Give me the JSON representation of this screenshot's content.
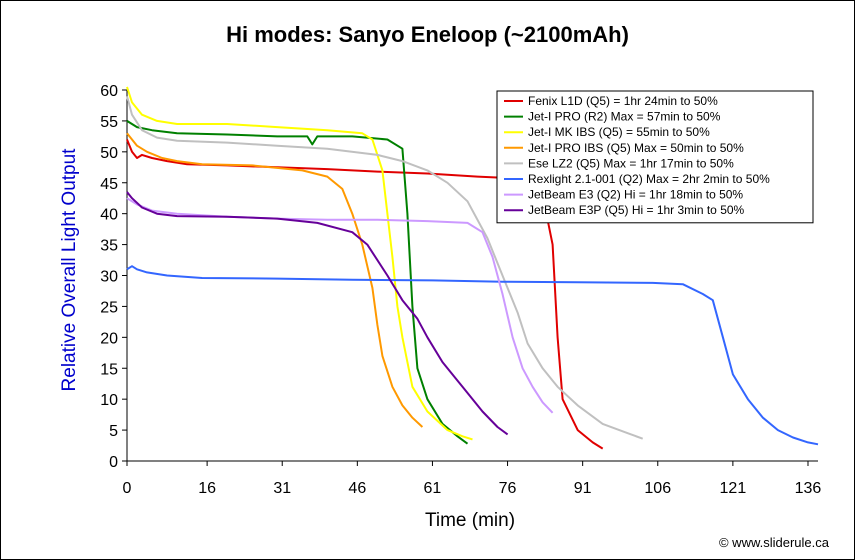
{
  "chart_data": {
    "type": "line",
    "title": "Hi modes: Sanyo Eneloop (~2100mAh)",
    "xlabel": "Time (min)",
    "ylabel": "Relative Overall Light Output",
    "xlim": [
      0,
      138
    ],
    "ylim": [
      0,
      60
    ],
    "x_ticks": [
      "0",
      "16",
      "31",
      "46",
      "61",
      "76",
      "91",
      "106",
      "121",
      "136"
    ],
    "y_ticks": [
      "0",
      "5",
      "10",
      "15",
      "20",
      "25",
      "30",
      "35",
      "40",
      "45",
      "50",
      "55",
      "60"
    ],
    "grid": false,
    "legend_position": "top-right",
    "series": [
      {
        "name": "Fenix L1D (Q5) = 1hr 24min to 50%",
        "color": "#e00000",
        "points": [
          [
            0,
            52
          ],
          [
            1,
            50
          ],
          [
            2,
            49
          ],
          [
            3,
            49.5
          ],
          [
            5,
            49
          ],
          [
            8,
            48.5
          ],
          [
            12,
            48
          ],
          [
            20,
            47.8
          ],
          [
            30,
            47.5
          ],
          [
            40,
            47.2
          ],
          [
            50,
            46.8
          ],
          [
            60,
            46.5
          ],
          [
            70,
            46
          ],
          [
            75,
            45.8
          ],
          [
            80,
            45.5
          ],
          [
            83,
            43
          ],
          [
            85,
            35
          ],
          [
            86,
            20
          ],
          [
            87,
            10
          ],
          [
            90,
            5
          ],
          [
            93,
            3
          ],
          [
            95,
            2
          ]
        ]
      },
      {
        "name": "Jet-I PRO (R2) Max = 57min to 50%",
        "color": "#008000",
        "points": [
          [
            0,
            55
          ],
          [
            2,
            54
          ],
          [
            5,
            53.5
          ],
          [
            10,
            53
          ],
          [
            20,
            52.8
          ],
          [
            30,
            52.5
          ],
          [
            36,
            52.5
          ],
          [
            37,
            51.2
          ],
          [
            38,
            52.5
          ],
          [
            45,
            52.5
          ],
          [
            52,
            52
          ],
          [
            55,
            50.5
          ],
          [
            56,
            40
          ],
          [
            57,
            25
          ],
          [
            58,
            15
          ],
          [
            60,
            10
          ],
          [
            63,
            6
          ],
          [
            66,
            4
          ],
          [
            68,
            2.8
          ]
        ]
      },
      {
        "name": "Jet-I MK IBS (Q5) =  55min to 50%",
        "color": "#ffff00",
        "points": [
          [
            0,
            60.5
          ],
          [
            1,
            58
          ],
          [
            3,
            56
          ],
          [
            6,
            55
          ],
          [
            10,
            54.5
          ],
          [
            20,
            54.5
          ],
          [
            30,
            54
          ],
          [
            40,
            53.5
          ],
          [
            47,
            53
          ],
          [
            49,
            52
          ],
          [
            51,
            47
          ],
          [
            52,
            40
          ],
          [
            53,
            33
          ],
          [
            54,
            25
          ],
          [
            55,
            20
          ],
          [
            57,
            12
          ],
          [
            60,
            8
          ],
          [
            64,
            5
          ],
          [
            67,
            4
          ],
          [
            69,
            3.5
          ]
        ]
      },
      {
        "name": "Jet-I PRO IBS (Q5) Max = 50min to 50%",
        "color": "#ff9900",
        "points": [
          [
            0,
            53
          ],
          [
            2,
            51
          ],
          [
            4,
            50
          ],
          [
            7,
            49
          ],
          [
            10,
            48.5
          ],
          [
            15,
            48
          ],
          [
            25,
            47.8
          ],
          [
            35,
            47
          ],
          [
            40,
            46
          ],
          [
            43,
            44
          ],
          [
            45,
            40
          ],
          [
            47,
            35
          ],
          [
            49,
            28
          ],
          [
            50,
            22
          ],
          [
            51,
            17
          ],
          [
            53,
            12
          ],
          [
            55,
            9
          ],
          [
            57,
            7
          ],
          [
            59,
            5.5
          ]
        ]
      },
      {
        "name": "Ese LZ2 (Q5) Max = 1hr 17min to 50%",
        "color": "#c0c0c0",
        "points": [
          [
            0,
            59
          ],
          [
            1,
            56
          ],
          [
            3,
            53.5
          ],
          [
            6,
            52.3
          ],
          [
            10,
            51.8
          ],
          [
            20,
            51.5
          ],
          [
            30,
            51
          ],
          [
            40,
            50.5
          ],
          [
            50,
            49.5
          ],
          [
            55,
            48.5
          ],
          [
            60,
            47
          ],
          [
            64,
            45
          ],
          [
            68,
            42
          ],
          [
            72,
            36
          ],
          [
            75,
            30
          ],
          [
            78,
            24
          ],
          [
            80,
            19
          ],
          [
            83,
            15
          ],
          [
            86,
            12
          ],
          [
            90,
            9
          ],
          [
            95,
            6
          ],
          [
            100,
            4.5
          ],
          [
            103,
            3.6
          ]
        ]
      },
      {
        "name": "Rexlight 2.1-001 (Q2) Max = 2hr 2min to 50%",
        "color": "#3366ff",
        "points": [
          [
            0,
            31
          ],
          [
            1,
            31.5
          ],
          [
            2,
            31
          ],
          [
            4,
            30.5
          ],
          [
            8,
            30
          ],
          [
            15,
            29.6
          ],
          [
            30,
            29.5
          ],
          [
            45,
            29.3
          ],
          [
            61,
            29.2
          ],
          [
            75,
            29
          ],
          [
            90,
            28.9
          ],
          [
            105,
            28.8
          ],
          [
            111,
            28.6
          ],
          [
            115,
            27
          ],
          [
            117,
            26
          ],
          [
            119,
            20
          ],
          [
            121,
            14
          ],
          [
            124,
            10
          ],
          [
            127,
            7
          ],
          [
            130,
            5
          ],
          [
            133,
            3.8
          ],
          [
            136,
            3
          ],
          [
            138,
            2.7
          ]
        ]
      },
      {
        "name": "JetBeam E3 (Q2) Hi = 1hr 18min to 50%",
        "color": "#cc99ff",
        "points": [
          [
            0,
            42.5
          ],
          [
            2,
            41.5
          ],
          [
            5,
            40.5
          ],
          [
            10,
            40
          ],
          [
            20,
            39.5
          ],
          [
            30,
            39.2
          ],
          [
            40,
            39
          ],
          [
            50,
            39
          ],
          [
            60,
            38.8
          ],
          [
            68,
            38.5
          ],
          [
            71,
            37
          ],
          [
            73,
            33
          ],
          [
            75,
            27
          ],
          [
            77,
            20
          ],
          [
            79,
            15
          ],
          [
            81,
            12
          ],
          [
            83,
            9.5
          ],
          [
            85,
            7.8
          ]
        ]
      },
      {
        "name": "JetBeam E3P (Q5) Hi = 1hr 3min to 50%",
        "color": "#660099",
        "points": [
          [
            0,
            43.5
          ],
          [
            1,
            42.5
          ],
          [
            3,
            41
          ],
          [
            6,
            40
          ],
          [
            10,
            39.6
          ],
          [
            20,
            39.5
          ],
          [
            30,
            39.2
          ],
          [
            38,
            38.5
          ],
          [
            45,
            37
          ],
          [
            48,
            35
          ],
          [
            52,
            30
          ],
          [
            55,
            26
          ],
          [
            58,
            23
          ],
          [
            60,
            20
          ],
          [
            63,
            16
          ],
          [
            67,
            12
          ],
          [
            71,
            8
          ],
          [
            74,
            5.5
          ],
          [
            76,
            4.3
          ]
        ]
      }
    ]
  },
  "credit": "© www.sliderule.ca"
}
